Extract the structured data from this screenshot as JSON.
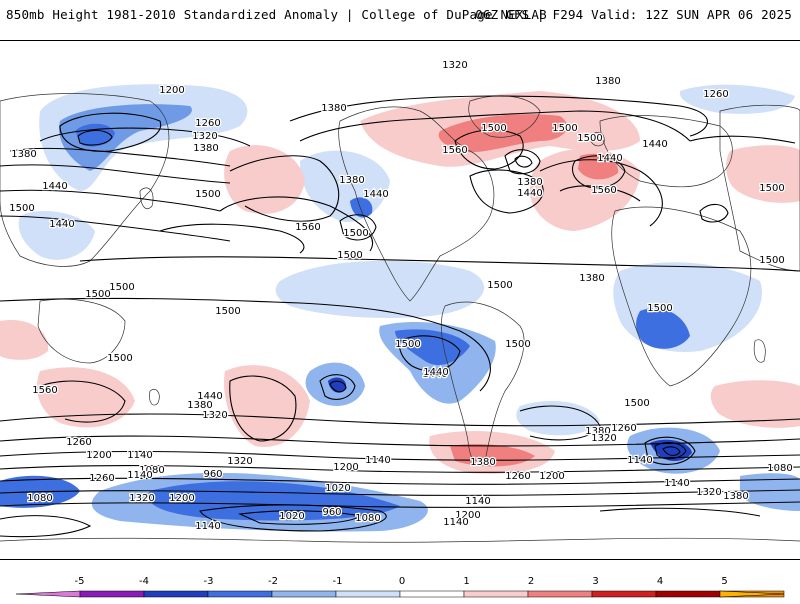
{
  "header": {
    "title_left": "850mb Height 1981-2010 Standardized Anomaly | College of DuPage NEXLAB",
    "title_right": "06Z GFS | F294 Valid: 12Z SUN APR 06 2025"
  },
  "colorbar": {
    "ticks": [
      "-5",
      "-4",
      "-3",
      "-2",
      "-1",
      "0",
      "1",
      "2",
      "3",
      "4",
      "5"
    ],
    "colors": [
      "#d97ad9",
      "#8a1bb8",
      "#1f3fbf",
      "#3e6fe0",
      "#8fb4ee",
      "#cfe0f8",
      "#ffffff",
      "#f9cccc",
      "#f08080",
      "#d02020",
      "#a00000",
      "#f08a00",
      "#ffb000"
    ]
  },
  "contour_labels": [
    {
      "text": "1200"
    },
    {
      "text": "1260"
    },
    {
      "text": "1320"
    },
    {
      "text": "1380"
    },
    {
      "text": "1380"
    },
    {
      "text": "1440"
    },
    {
      "text": "1500"
    },
    {
      "text": "1440"
    },
    {
      "text": "1380"
    },
    {
      "text": "1440"
    },
    {
      "text": "1500"
    },
    {
      "text": "1320"
    },
    {
      "text": "1380"
    },
    {
      "text": "1380"
    },
    {
      "text": "1440"
    },
    {
      "text": "1560"
    },
    {
      "text": "1500"
    },
    {
      "text": "1500"
    },
    {
      "text": "1500"
    },
    {
      "text": "1440"
    },
    {
      "text": "1380"
    },
    {
      "text": "1440"
    },
    {
      "text": "1560"
    },
    {
      "text": "1260"
    },
    {
      "text": "1500"
    },
    {
      "text": "1500"
    },
    {
      "text": "1500"
    },
    {
      "text": "1500"
    },
    {
      "text": "1500"
    },
    {
      "text": "1500"
    },
    {
      "text": "1560"
    },
    {
      "text": "1500"
    },
    {
      "text": "1500"
    },
    {
      "text": "1440"
    },
    {
      "text": "1560"
    },
    {
      "text": "1500"
    },
    {
      "text": "1440"
    },
    {
      "text": "1380"
    },
    {
      "text": "1320"
    },
    {
      "text": "1260"
    },
    {
      "text": "1200"
    },
    {
      "text": "1140"
    },
    {
      "text": "1080"
    },
    {
      "text": "1080"
    },
    {
      "text": "1260"
    },
    {
      "text": "1140"
    },
    {
      "text": "1320"
    },
    {
      "text": "1200"
    },
    {
      "text": "960"
    },
    {
      "text": "1020"
    },
    {
      "text": "1140"
    },
    {
      "text": "1020"
    },
    {
      "text": "960"
    },
    {
      "text": "1080"
    },
    {
      "text": "1140"
    },
    {
      "text": "1200"
    },
    {
      "text": "1500"
    },
    {
      "text": "1320"
    },
    {
      "text": "1260"
    },
    {
      "text": "1320"
    },
    {
      "text": "1200"
    },
    {
      "text": "1140"
    },
    {
      "text": "1380"
    },
    {
      "text": "1260"
    },
    {
      "text": "1200"
    },
    {
      "text": "1500"
    },
    {
      "text": "1440"
    },
    {
      "text": "1380"
    },
    {
      "text": "1320"
    },
    {
      "text": "1140"
    },
    {
      "text": "1140"
    },
    {
      "text": "1320"
    },
    {
      "text": "1380"
    },
    {
      "text": "1080"
    },
    {
      "text": "1500"
    },
    {
      "text": "1500"
    },
    {
      "text": "1380"
    },
    {
      "text": "1140"
    }
  ]
}
